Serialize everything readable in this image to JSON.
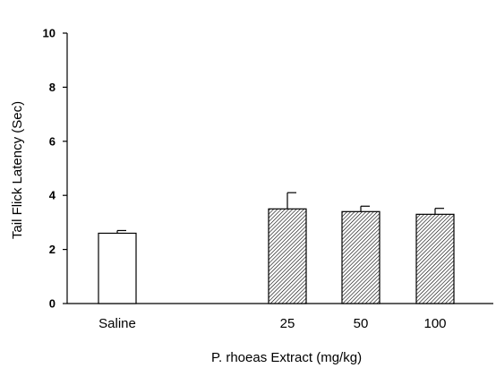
{
  "chart_data": {
    "type": "bar",
    "categories": [
      "Saline",
      "25",
      "50",
      "100"
    ],
    "values": [
      2.6,
      3.5,
      3.4,
      3.3
    ],
    "errors": [
      0.1,
      0.6,
      0.2,
      0.22
    ],
    "bar_styles": [
      "open",
      "hatched",
      "hatched",
      "hatched"
    ],
    "xlabel": "P. rhoeas Extract (mg/kg)",
    "ylabel": "Tail Flick Latency (Sec)",
    "ylim": [
      0,
      10
    ],
    "yticks": [
      0,
      2,
      4,
      6,
      8,
      10
    ],
    "grid": false
  }
}
